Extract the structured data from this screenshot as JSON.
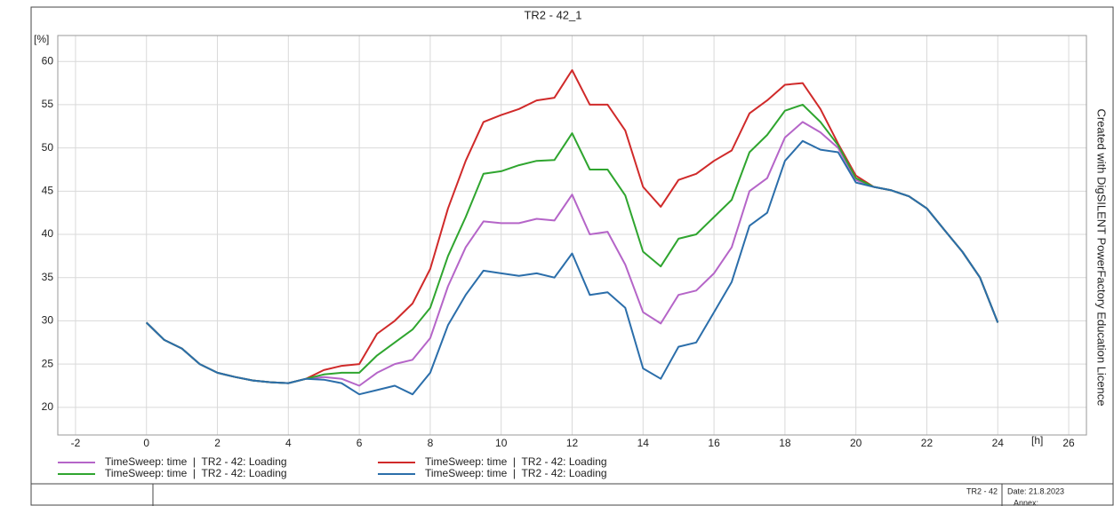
{
  "chart_data": {
    "type": "line",
    "title": "TR2 - 42_1",
    "ylabel": "[%]",
    "xlabel": "[h]",
    "side_note": "Created with DigSILENT PowerFactory Education Licence",
    "x": [
      0,
      0.5,
      1,
      1.5,
      2,
      2.5,
      3,
      3.5,
      4,
      4.5,
      5,
      5.5,
      6,
      6.5,
      7,
      7.5,
      8,
      8.5,
      9,
      9.5,
      10,
      10.5,
      11,
      11.5,
      12,
      12.5,
      13,
      13.5,
      14,
      14.5,
      15,
      15.5,
      16,
      16.5,
      17,
      17.5,
      18,
      18.5,
      19,
      19.5,
      20,
      20.5,
      21,
      21.5,
      22,
      22.5,
      23,
      23.5,
      24
    ],
    "xlim": [
      -2.5,
      26.5
    ],
    "xticks": [
      -2,
      0,
      2,
      4,
      6,
      8,
      10,
      12,
      14,
      16,
      18,
      20,
      22,
      24,
      26
    ],
    "ylim": [
      16.8,
      63
    ],
    "yticks": [
      20,
      25,
      30,
      35,
      40,
      45,
      50,
      55,
      60
    ],
    "grid": true,
    "series": [
      {
        "name": "TimeSweep: time  |  TR2 - 42: Loading",
        "color": "#b565c8",
        "values": [
          29.8,
          27.8,
          26.8,
          25,
          24,
          23.5,
          23.1,
          22.9,
          22.8,
          23.3,
          23.5,
          23.3,
          22.5,
          24,
          25,
          25.5,
          28,
          34,
          38.5,
          41.5,
          41.3,
          41.3,
          41.8,
          41.6,
          44.6,
          40,
          40.3,
          36.5,
          31,
          29.7,
          33,
          33.5,
          35.5,
          38.5,
          45,
          46.5,
          51.2,
          53,
          51.8,
          50,
          46.3,
          45.5,
          45.1,
          44.4,
          43,
          40.5,
          38,
          35,
          29.8
        ]
      },
      {
        "name": "TimeSweep: time  |  TR2 - 42: Loading",
        "color": "#d02a2a",
        "values": [
          29.8,
          27.8,
          26.8,
          25,
          24,
          23.5,
          23.1,
          22.9,
          22.8,
          23.3,
          24.3,
          24.8,
          25,
          28.5,
          30,
          32,
          36,
          43,
          48.5,
          53,
          53.8,
          54.5,
          55.5,
          55.8,
          59,
          55,
          55,
          52,
          45.5,
          43.2,
          46.3,
          47,
          48.5,
          49.7,
          54,
          55.5,
          57.3,
          57.5,
          54.5,
          50.5,
          46.8,
          45.5,
          45.1,
          44.4,
          43,
          40.5,
          38,
          35,
          29.8
        ]
      },
      {
        "name": "TimeSweep: time  |  TR2 - 42: Loading",
        "color": "#2fa52f",
        "values": [
          29.8,
          27.8,
          26.8,
          25,
          24,
          23.5,
          23.1,
          22.9,
          22.8,
          23.3,
          23.8,
          24,
          24,
          26,
          27.5,
          29,
          31.5,
          37.5,
          42,
          47,
          47.3,
          48,
          48.5,
          48.6,
          51.7,
          47.5,
          47.5,
          44.5,
          38,
          36.3,
          39.5,
          40,
          42,
          44,
          49.5,
          51.5,
          54.3,
          55,
          53,
          50.3,
          46.5,
          45.5,
          45.1,
          44.4,
          43,
          40.5,
          38,
          35,
          29.8
        ]
      },
      {
        "name": "TimeSweep: time  |  TR2 - 42: Loading",
        "color": "#2b6eaa",
        "values": [
          29.8,
          27.8,
          26.8,
          25,
          24,
          23.5,
          23.1,
          22.9,
          22.8,
          23.3,
          23.2,
          22.8,
          21.5,
          22,
          22.5,
          21.5,
          24,
          29.5,
          33,
          35.8,
          35.5,
          35.2,
          35.5,
          35,
          37.8,
          33,
          33.3,
          31.5,
          24.5,
          23.3,
          27,
          27.5,
          31,
          34.5,
          41,
          42.5,
          48.5,
          50.8,
          49.8,
          49.5,
          46,
          45.5,
          45.1,
          44.4,
          43,
          40.5,
          38,
          35,
          29.8
        ]
      }
    ]
  },
  "footer": {
    "object": "TR2 - 42",
    "date": "Date: 21.8.2023",
    "annex": "Annex:"
  }
}
